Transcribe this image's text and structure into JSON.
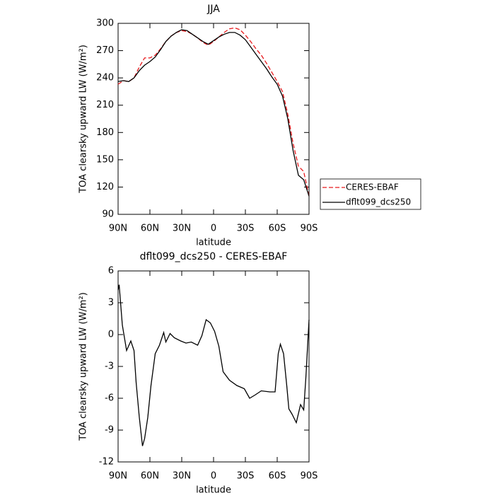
{
  "chart_data": [
    {
      "type": "line",
      "title": "JJA",
      "xlabel": "latitude",
      "ylabel": "TOA clearsky upward LW (W/m²)",
      "x": [
        90,
        85,
        80,
        75,
        70,
        65,
        60,
        55,
        50,
        45,
        40,
        35,
        30,
        25,
        20,
        15,
        10,
        5,
        0,
        -5,
        -10,
        -15,
        -20,
        -25,
        -30,
        -35,
        -40,
        -45,
        -50,
        -55,
        -60,
        -65,
        -70,
        -75,
        -80,
        -85,
        -90
      ],
      "series": [
        {
          "name": "CERES-EBAF",
          "color": "#e8191c",
          "dashed": true,
          "values": [
            233,
            237,
            236,
            240,
            252,
            262,
            262,
            265,
            272,
            280,
            286,
            290,
            292,
            291,
            288,
            284,
            279,
            276,
            280,
            285,
            290,
            294,
            295,
            293,
            287,
            280,
            272,
            265,
            256,
            246,
            236,
            225,
            200,
            168,
            143,
            137,
            110
          ]
        },
        {
          "name": "dflt099_dcs250",
          "color": "#000000",
          "dashed": false,
          "values": [
            236,
            237,
            236,
            240,
            248,
            254,
            258,
            263,
            271,
            280,
            286,
            290,
            293,
            292,
            288,
            284,
            280,
            277,
            281,
            285,
            288,
            290,
            290,
            287,
            282,
            274,
            266,
            258,
            250,
            241,
            233,
            220,
            195,
            160,
            133,
            128,
            110
          ]
        }
      ],
      "xlim": [
        90,
        -90
      ],
      "xticks": [
        {
          "value": 90,
          "label": "90N"
        },
        {
          "value": 60,
          "label": "60N"
        },
        {
          "value": 30,
          "label": "30N"
        },
        0,
        {
          "value": -30,
          "label": "30S"
        },
        {
          "value": -60,
          "label": "60S"
        },
        {
          "value": -90,
          "label": "90S"
        }
      ],
      "ylim": [
        90,
        300
      ],
      "yticks": [
        90,
        120,
        150,
        180,
        210,
        240,
        270,
        300
      ],
      "legend": "right"
    },
    {
      "type": "line",
      "title": "dflt099_dcs250 - CERES-EBAF",
      "xlabel": "latitude",
      "ylabel": "TOA clearsky upward LW (W/m²)",
      "x": [
        90,
        89,
        86,
        82,
        78,
        75,
        73,
        70,
        67,
        65,
        62,
        59,
        55,
        51,
        47,
        45,
        41,
        37,
        31,
        26,
        21,
        15,
        11,
        7,
        3,
        -1,
        -5,
        -9,
        -15,
        -22,
        -29,
        -34,
        -39,
        -45,
        -53,
        -58,
        -61,
        -63,
        -66,
        -69,
        -71,
        -74,
        -78,
        -82,
        -85,
        -87,
        -90
      ],
      "series": [
        {
          "name": "dflt099_dcs250 - CERES-EBAF",
          "color": "#000000",
          "dashed": false,
          "values": [
            4.2,
            4.7,
            0.9,
            -1.5,
            -0.6,
            -1.5,
            -4.5,
            -7.8,
            -10.5,
            -9.8,
            -7.8,
            -4.8,
            -1.8,
            -1,
            0.2,
            -0.7,
            0.1,
            -0.3,
            -0.6,
            -0.8,
            -0.7,
            -1,
            -0.1,
            1.4,
            1.1,
            0.3,
            -1.1,
            -3.5,
            -4.3,
            -4.8,
            -5.1,
            -6,
            -5.7,
            -5.3,
            -5.4,
            -5.4,
            -1.8,
            -0.9,
            -1.8,
            -4.8,
            -7,
            -7.5,
            -8.3,
            -6.6,
            -7.1,
            -4.1,
            1.4
          ]
        }
      ],
      "xlim": [
        90,
        -90
      ],
      "xticks": [
        {
          "value": 90,
          "label": "90N"
        },
        {
          "value": 60,
          "label": "60N"
        },
        {
          "value": 30,
          "label": "30N"
        },
        0,
        {
          "value": -30,
          "label": "30S"
        },
        {
          "value": -60,
          "label": "60S"
        },
        {
          "value": -90,
          "label": "90S"
        }
      ],
      "ylim": [
        -12,
        6
      ],
      "yticks": [
        -12,
        -9,
        -6,
        -3,
        0,
        3,
        6
      ]
    }
  ]
}
